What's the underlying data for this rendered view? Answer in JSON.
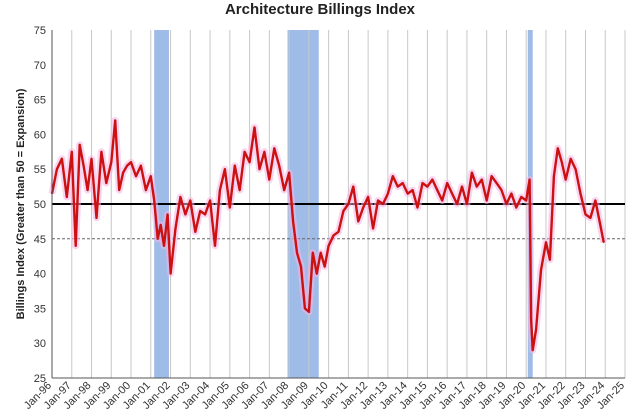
{
  "chart_data": {
    "type": "line",
    "title": "Architecture Billings Index",
    "ylabel": "Billings Index (Greater than 50 = Expansion)",
    "xlabel": "",
    "ylim": [
      25,
      75
    ],
    "y_ticks": [
      25,
      30,
      35,
      40,
      45,
      50,
      55,
      60,
      65,
      70,
      75
    ],
    "x_range": [
      1996.0,
      2025.0
    ],
    "x_tick_labels": [
      "Jan-96",
      "Jan-97",
      "Jan-98",
      "Jan-99",
      "Jan-00",
      "Jan-01",
      "Jan-02",
      "Jan-03",
      "Jan-04",
      "Jan-05",
      "Jan-06",
      "Jan-07",
      "Jan-08",
      "Jan-09",
      "Jan-10",
      "Jan-11",
      "Jan-12",
      "Jan-13",
      "Jan-14",
      "Jan-15",
      "Jan-16",
      "Jan-17",
      "Jan-18",
      "Jan-19",
      "Jan-20",
      "Jan-21",
      "Jan-22",
      "Jan-23",
      "Jan-24",
      "Jan-25"
    ],
    "grid": "vertical",
    "reference_lines": [
      {
        "y": 50,
        "style": "solid",
        "color": "#000000"
      },
      {
        "y": 45,
        "style": "dashed",
        "color": "#666666"
      }
    ],
    "recession_bands": [
      {
        "start": 2001.17,
        "end": 2001.92
      },
      {
        "start": 2007.92,
        "end": 2009.5
      },
      {
        "start": 2020.08,
        "end": 2020.33
      }
    ],
    "series": [
      {
        "color": "#cc1111",
        "x": [
          1996.0,
          1996.25,
          1996.5,
          1996.75,
          1997.0,
          1997.2,
          1997.4,
          1997.6,
          1997.8,
          1998.0,
          1998.25,
          1998.5,
          1998.75,
          1999.0,
          1999.2,
          1999.4,
          1999.6,
          1999.8,
          2000.0,
          2000.25,
          2000.5,
          2000.75,
          2001.0,
          2001.17,
          2001.35,
          2001.5,
          2001.67,
          2001.85,
          2002.0,
          2002.25,
          2002.5,
          2002.75,
          2003.0,
          2003.25,
          2003.5,
          2003.75,
          2004.0,
          2004.25,
          2004.5,
          2004.75,
          2005.0,
          2005.25,
          2005.5,
          2005.75,
          2006.0,
          2006.25,
          2006.5,
          2006.75,
          2007.0,
          2007.25,
          2007.5,
          2007.75,
          2008.0,
          2008.2,
          2008.4,
          2008.6,
          2008.8,
          2009.0,
          2009.2,
          2009.4,
          2009.6,
          2009.8,
          2010.0,
          2010.25,
          2010.5,
          2010.75,
          2011.0,
          2011.25,
          2011.5,
          2011.75,
          2012.0,
          2012.25,
          2012.5,
          2012.75,
          2013.0,
          2013.25,
          2013.5,
          2013.75,
          2014.0,
          2014.25,
          2014.5,
          2014.75,
          2015.0,
          2015.25,
          2015.5,
          2015.75,
          2016.0,
          2016.25,
          2016.5,
          2016.75,
          2017.0,
          2017.25,
          2017.5,
          2017.75,
          2018.0,
          2018.25,
          2018.5,
          2018.75,
          2019.0,
          2019.25,
          2019.5,
          2019.75,
          2020.0,
          2020.08,
          2020.17,
          2020.25,
          2020.33,
          2020.5,
          2020.75,
          2021.0,
          2021.2,
          2021.4,
          2021.6,
          2021.8,
          2022.0,
          2022.25,
          2022.5,
          2022.75,
          2023.0,
          2023.25,
          2023.5,
          2023.75,
          2023.92
        ],
        "y": [
          51.5,
          55.0,
          56.5,
          51.0,
          57.5,
          44.0,
          58.5,
          55.5,
          52.0,
          56.5,
          48.0,
          57.5,
          53.0,
          56.0,
          62.0,
          52.0,
          54.5,
          55.5,
          56.0,
          54.0,
          55.5,
          52.0,
          54.0,
          50.5,
          45.0,
          47.0,
          44.0,
          48.5,
          40.0,
          46.5,
          51.0,
          48.5,
          50.5,
          46.0,
          49.0,
          48.5,
          50.5,
          44.0,
          52.0,
          55.0,
          49.5,
          55.5,
          52.0,
          57.5,
          56.0,
          61.0,
          55.0,
          57.5,
          53.5,
          58.0,
          55.5,
          52.0,
          54.5,
          47.5,
          43.0,
          41.0,
          35.0,
          34.5,
          43.0,
          40.0,
          43.0,
          41.0,
          44.0,
          45.5,
          46.0,
          49.0,
          50.0,
          52.5,
          47.5,
          49.5,
          51.0,
          46.5,
          50.5,
          50.0,
          51.5,
          54.0,
          52.5,
          53.0,
          51.5,
          52.0,
          49.5,
          53.0,
          52.5,
          53.5,
          52.0,
          50.5,
          53.0,
          51.5,
          50.0,
          52.5,
          50.0,
          54.5,
          52.5,
          53.5,
          50.5,
          54.0,
          53.0,
          52.0,
          50.0,
          51.5,
          49.5,
          51.0,
          50.5,
          52.0,
          53.5,
          33.5,
          29.0,
          32.0,
          40.5,
          44.5,
          42.0,
          54.0,
          58.0,
          56.0,
          53.5,
          56.5,
          55.0,
          51.5,
          48.5,
          48.0,
          50.5,
          47.0,
          44.5
        ]
      }
    ]
  }
}
